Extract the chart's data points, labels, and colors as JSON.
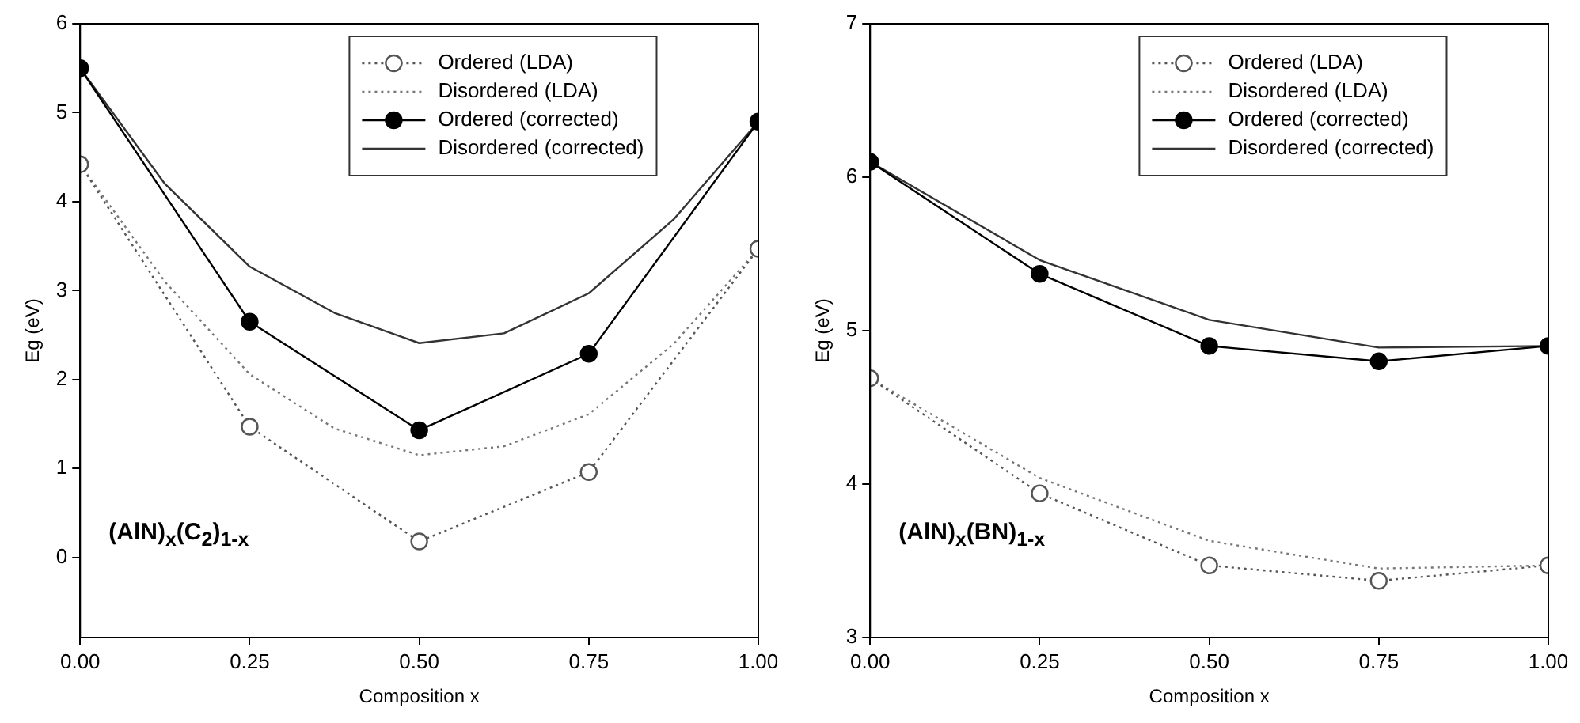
{
  "chart_data": [
    {
      "type": "line",
      "xlabel": "Composition x",
      "ylabel": "Eg (eV)",
      "annotations": [
        "(AlN)$_{x}$(C$_{2}$)$_{1-x}$"
      ],
      "xlim": [
        0,
        1
      ],
      "xticks": [
        {
          "value": 0,
          "label": "0.00"
        },
        {
          "value": 0.25,
          "label": "0.25"
        },
        {
          "value": 0.5,
          "label": "0.50"
        },
        {
          "value": 0.75,
          "label": "0.75"
        },
        {
          "value": 1,
          "label": "1.00"
        }
      ],
      "ylim": [
        -0.9,
        6
      ],
      "yticks": [
        0,
        1,
        2,
        3,
        4,
        5,
        6
      ],
      "grid": false,
      "legend": "top right",
      "series": [
        {
          "name": "Ordered (LDA)",
          "color": "#555555",
          "marker": "circle",
          "line_style": "dotted",
          "x": [
            0,
            0.25,
            0.5,
            0.75,
            1
          ],
          "values": [
            4.42,
            1.47,
            0.18,
            0.96,
            3.47
          ]
        },
        {
          "name": "Disordered (LDA)",
          "color": "#777777",
          "marker": "none",
          "line_style": "dotted",
          "x": [
            0,
            0.125,
            0.25,
            0.375,
            0.5,
            0.625,
            0.75,
            0.875,
            1
          ],
          "values": [
            4.42,
            3.1,
            2.06,
            1.45,
            1.15,
            1.25,
            1.61,
            2.4,
            3.47
          ]
        },
        {
          "name": "Ordered (corrected)",
          "color": "#000000",
          "marker": "circle",
          "line_style": "solid",
          "x": [
            0,
            0.25,
            0.5,
            0.75,
            1
          ],
          "values": [
            5.5,
            2.65,
            1.43,
            2.29,
            4.9
          ]
        },
        {
          "name": "Disordered (corrected)",
          "color": "#333333",
          "marker": "none",
          "line_style": "solid",
          "x": [
            0,
            0.125,
            0.25,
            0.375,
            0.5,
            0.625,
            0.75,
            0.875,
            1
          ],
          "values": [
            5.5,
            4.2,
            3.27,
            2.75,
            2.41,
            2.52,
            2.97,
            3.8,
            4.9
          ]
        }
      ]
    },
    {
      "type": "line",
      "xlabel": "Composition x",
      "ylabel": "Eg (eV)",
      "annotations": [
        "(AlN)$_{x}$(BN)$_{1-x}$"
      ],
      "xlim": [
        0,
        1
      ],
      "xticks": [
        {
          "value": 0,
          "label": "0.00"
        },
        {
          "value": 0.25,
          "label": "0.25"
        },
        {
          "value": 0.5,
          "label": "0.50"
        },
        {
          "value": 0.75,
          "label": "0.75"
        },
        {
          "value": 1,
          "label": "1.00"
        }
      ],
      "ylim": [
        3,
        7
      ],
      "yticks": [
        3,
        4,
        5,
        6,
        7
      ],
      "grid": false,
      "legend": "top right",
      "series": [
        {
          "name": "Ordered (LDA)",
          "color": "#555555",
          "marker": "circle",
          "line_style": "dotted",
          "x": [
            0,
            0.25,
            0.5,
            0.75,
            1
          ],
          "values": [
            4.69,
            3.94,
            3.47,
            3.37,
            3.47
          ]
        },
        {
          "name": "Disordered (LDA)",
          "color": "#777777",
          "marker": "none",
          "line_style": "dotted",
          "x": [
            0,
            0.25,
            0.5,
            0.75,
            1
          ],
          "values": [
            4.69,
            4.04,
            3.63,
            3.45,
            3.47
          ]
        },
        {
          "name": "Ordered (corrected)",
          "color": "#000000",
          "marker": "circle",
          "line_style": "solid",
          "x": [
            0,
            0.25,
            0.5,
            0.75,
            1
          ],
          "values": [
            6.1,
            5.37,
            4.9,
            4.8,
            4.9
          ]
        },
        {
          "name": "Disordered (corrected)",
          "color": "#333333",
          "marker": "none",
          "line_style": "solid",
          "x": [
            0,
            0.25,
            0.5,
            0.75,
            1
          ],
          "values": [
            6.1,
            5.46,
            5.07,
            4.89,
            4.9
          ]
        }
      ]
    }
  ]
}
